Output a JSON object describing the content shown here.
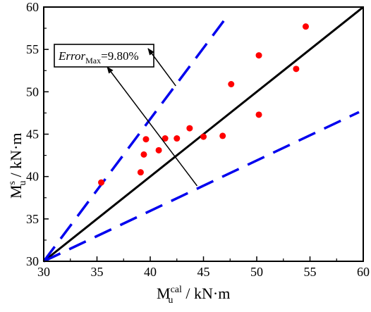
{
  "chart_data": {
    "type": "scatter",
    "title": "",
    "xlabel": {
      "main": "M",
      "sup": "cal",
      "sub": "u",
      "unit": " / kN·m"
    },
    "ylabel": {
      "main": "M",
      "sup": "s",
      "sub": "u",
      "unit": " / kN·m"
    },
    "xlim": [
      30,
      60
    ],
    "ylim": [
      30,
      60
    ],
    "xticks": [
      "30",
      "35",
      "40",
      "45",
      "50",
      "55",
      "60"
    ],
    "yticks": [
      "30",
      "35",
      "40",
      "45",
      "50",
      "55",
      "60"
    ],
    "grid": false,
    "points": {
      "color": "#ff0000",
      "values": [
        [
          35.4,
          39.3
        ],
        [
          39.1,
          40.5
        ],
        [
          39.4,
          42.6
        ],
        [
          39.6,
          44.4
        ],
        [
          40.8,
          43.1
        ],
        [
          41.4,
          44.5
        ],
        [
          42.5,
          44.5
        ],
        [
          43.7,
          45.7
        ],
        [
          45.0,
          44.7
        ],
        [
          46.8,
          44.8
        ],
        [
          47.6,
          50.9
        ],
        [
          50.2,
          54.3
        ],
        [
          50.2,
          47.3
        ],
        [
          53.7,
          52.7
        ],
        [
          54.6,
          57.7
        ]
      ]
    },
    "reference_lines": [
      {
        "label": "y = x",
        "style": "solid",
        "color": "#000000",
        "x": [
          30,
          60
        ],
        "y": [
          30,
          60
        ]
      },
      {
        "label": "upper bound",
        "style": "dashed",
        "color": "#0000ee",
        "x": [
          30,
          47.4
        ],
        "y": [
          30,
          59.2
        ]
      },
      {
        "label": "lower bound",
        "style": "dashed",
        "color": "#0000ee",
        "x": [
          30,
          59.6
        ],
        "y": [
          30,
          47.6
        ]
      }
    ],
    "annotation": {
      "prefix": "Error",
      "subscript": "Max",
      "suffix": "=9.80%",
      "arrows_to": [
        [
          42.4,
          50.7
        ],
        [
          44.4,
          38.9
        ]
      ]
    }
  }
}
